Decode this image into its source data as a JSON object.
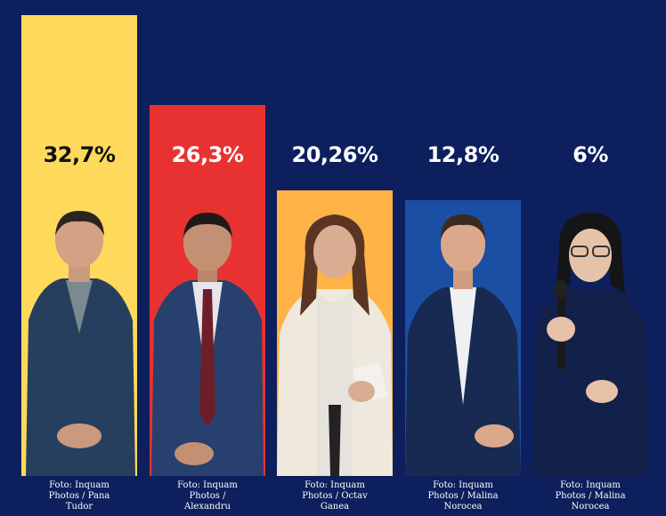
{
  "chart_data": {
    "type": "bar",
    "categories": [
      "",
      "",
      "",
      "",
      ""
    ],
    "values": [
      32.7,
      26.3,
      20.26,
      12.8,
      6
    ],
    "labels": [
      "32,7%",
      "26,3%",
      "20,26%",
      "12,8%",
      "6%"
    ],
    "bar_colors": [
      "#ffd95c",
      "#e83232",
      "#ffb347",
      "#1a4fa3",
      "#0d1f5c"
    ],
    "label_colors": [
      "#111111",
      "#ffffff",
      "#ffffff",
      "#ffffff",
      "#ffffff"
    ],
    "ylim": [
      0,
      32.7
    ],
    "grid": false,
    "legend": "none"
  },
  "credits": [
    [
      "Foto: Inquam",
      "Photos / Pana",
      "Tudor"
    ],
    [
      "Foto: Inquam",
      "Photos /",
      "Alexandru"
    ],
    [
      "Foto: Inquam",
      "Photos / Octav",
      "Ganea"
    ],
    [
      "Foto: Inquam",
      "Photos / Malina",
      "Norocea"
    ],
    [
      "Foto: Inquam",
      "Photos / Malina",
      "Norocea"
    ]
  ]
}
